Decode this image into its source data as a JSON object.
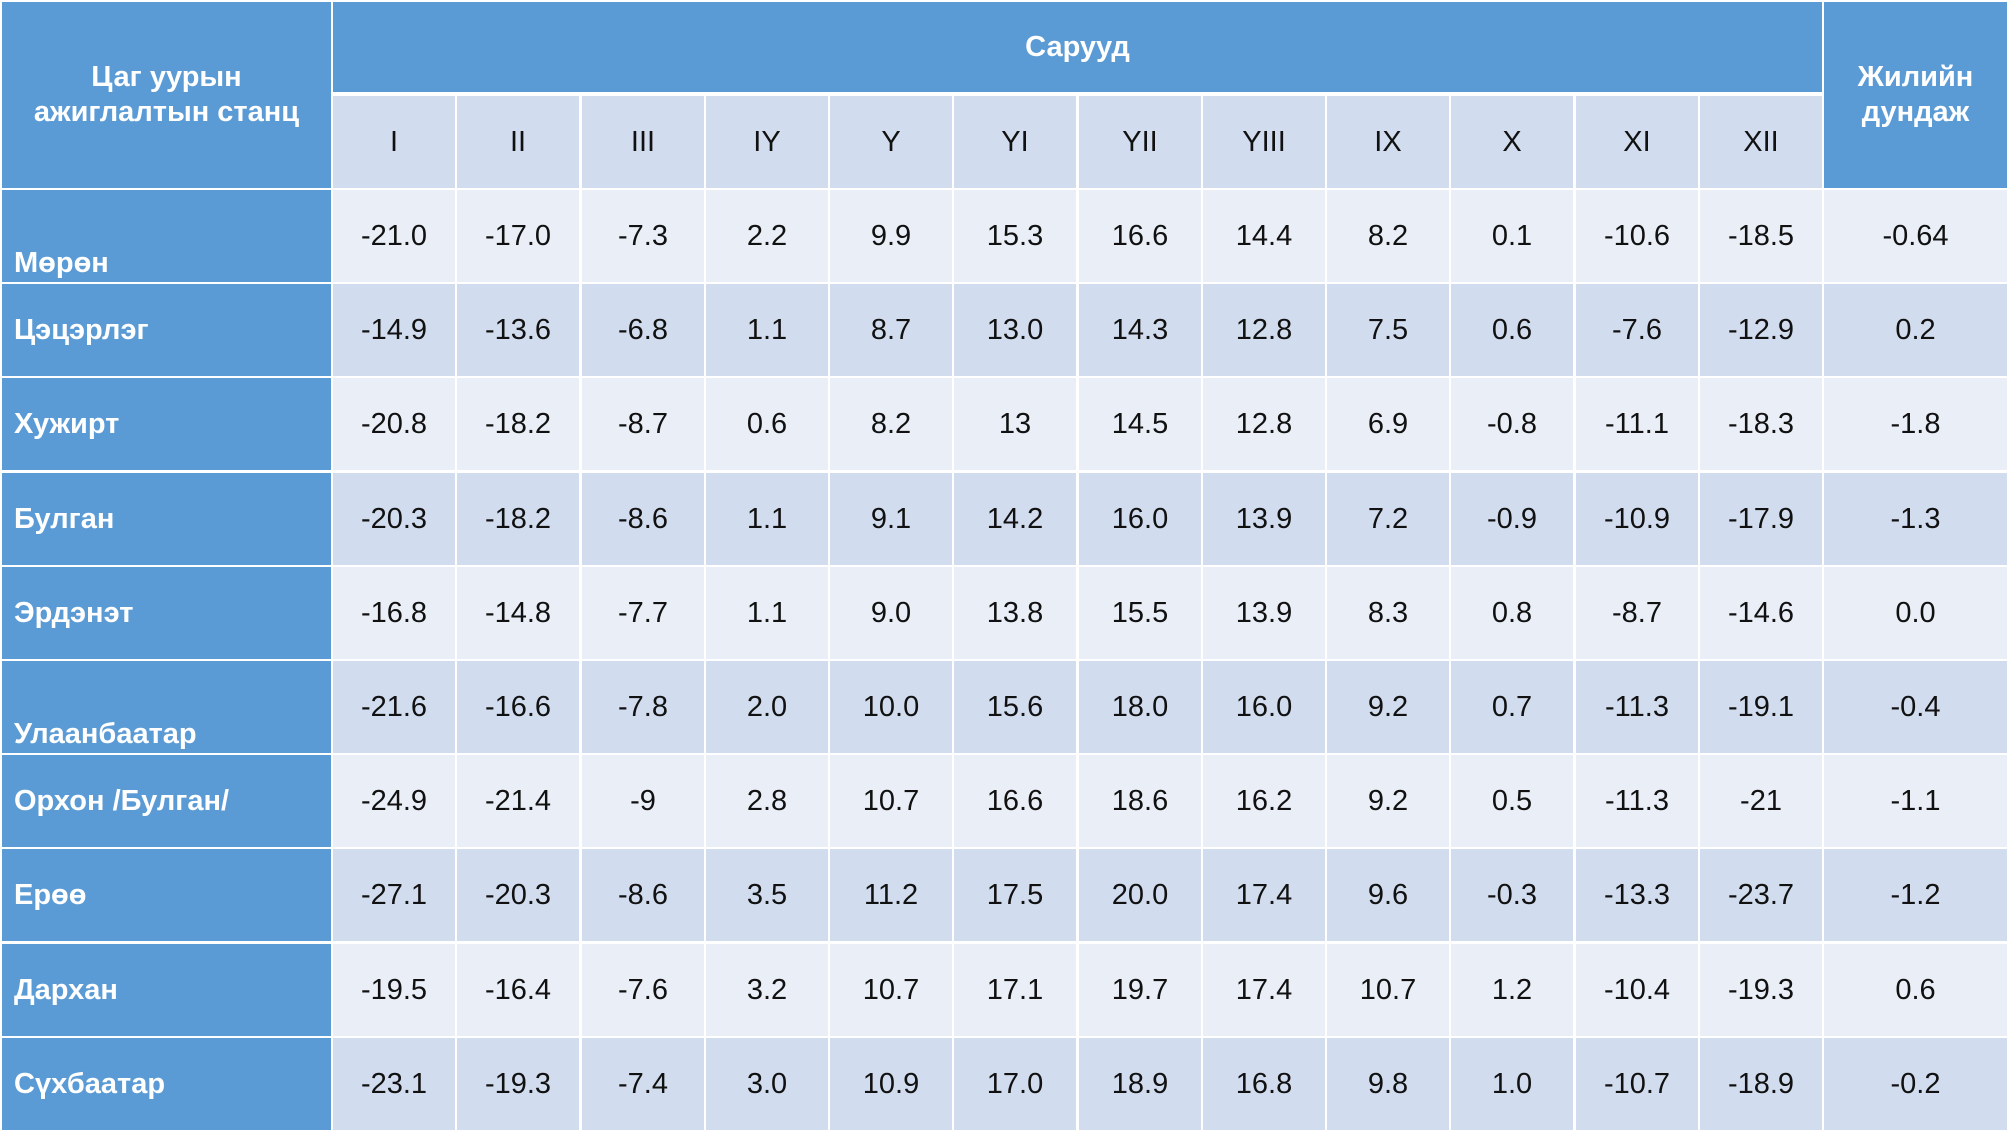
{
  "table": {
    "header": {
      "station_label": "Цаг уурын ажиглалтын станц",
      "months_group_label": "Сарууд",
      "annual_label": "Жилийн дундаж"
    },
    "months": [
      "I",
      "II",
      "III",
      "IY",
      "Y",
      "YI",
      "YII",
      "YIII",
      "IX",
      "X",
      "XI",
      "XII"
    ],
    "rows": [
      {
        "station": "Мөрөн",
        "values": [
          "-21.0",
          "-17.0",
          "-7.3",
          "2.2",
          "9.9",
          "15.3",
          "16.6",
          "14.4",
          "8.2",
          "0.1",
          "-10.6",
          "-18.5"
        ],
        "annual": "-0.64"
      },
      {
        "station": "Цэцэрлэг",
        "values": [
          "-14.9",
          "-13.6",
          "-6.8",
          "1.1",
          "8.7",
          "13.0",
          "14.3",
          "12.8",
          "7.5",
          "0.6",
          "-7.6",
          "-12.9"
        ],
        "annual": "0.2"
      },
      {
        "station": "Хужирт",
        "values": [
          "-20.8",
          "-18.2",
          "-8.7",
          "0.6",
          "8.2",
          "13",
          "14.5",
          "12.8",
          "6.9",
          "-0.8",
          "-11.1",
          "-18.3"
        ],
        "annual": "-1.8"
      },
      {
        "station": "Булган",
        "values": [
          "-20.3",
          "-18.2",
          "-8.6",
          "1.1",
          "9.1",
          "14.2",
          "16.0",
          "13.9",
          "7.2",
          "-0.9",
          "-10.9",
          "-17.9"
        ],
        "annual": "-1.3"
      },
      {
        "station": "Эрдэнэт",
        "values": [
          "-16.8",
          "-14.8",
          "-7.7",
          "1.1",
          "9.0",
          "13.8",
          "15.5",
          "13.9",
          "8.3",
          "0.8",
          "-8.7",
          "-14.6"
        ],
        "annual": "0.0"
      },
      {
        "station": "Улаанбаатар",
        "values": [
          "-21.6",
          "-16.6",
          "-7.8",
          "2.0",
          "10.0",
          "15.6",
          "18.0",
          "16.0",
          "9.2",
          "0.7",
          "-11.3",
          "-19.1"
        ],
        "annual": "-0.4"
      },
      {
        "station": "Орхон /Булган/",
        "values": [
          "-24.9",
          "-21.4",
          "-9",
          "2.8",
          "10.7",
          "16.6",
          "18.6",
          "16.2",
          "9.2",
          "0.5",
          "-11.3",
          "-21"
        ],
        "annual": "-1.1"
      },
      {
        "station": "Ерөө",
        "values": [
          "-27.1",
          "-20.3",
          "-8.6",
          "3.5",
          "11.2",
          "17.5",
          "20.0",
          "17.4",
          "9.6",
          "-0.3",
          "-13.3",
          "-23.7"
        ],
        "annual": "-1.2"
      },
      {
        "station": "Дархан",
        "values": [
          "-19.5",
          "-16.4",
          "-7.6",
          "3.2",
          "10.7",
          "17.1",
          "19.7",
          "17.4",
          "10.7",
          "1.2",
          "-10.4",
          "-19.3"
        ],
        "annual": "0.6"
      },
      {
        "station": "Сүхбаатар",
        "values": [
          "-23.1",
          "-19.3",
          "-7.4",
          "3.0",
          "10.9",
          "17.0",
          "18.9",
          "16.8",
          "9.8",
          "1.0",
          "-10.7",
          "-18.9"
        ],
        "annual": "-0.2"
      }
    ]
  }
}
